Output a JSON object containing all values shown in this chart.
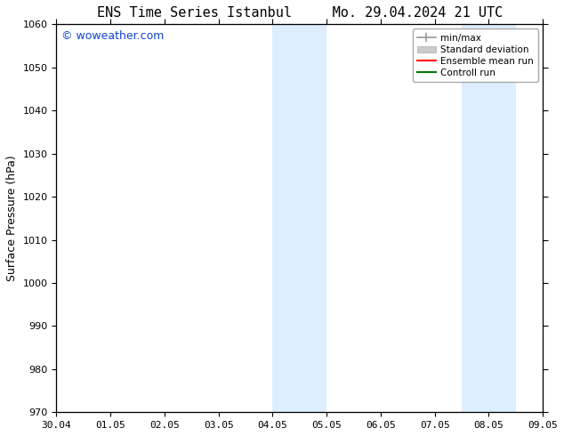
{
  "title_left": "ENS Time Series Istanbul",
  "title_right": "Mo. 29.04.2024 21 UTC",
  "ylabel": "Surface Pressure (hPa)",
  "ylim": [
    970,
    1060
  ],
  "yticks": [
    970,
    980,
    990,
    1000,
    1010,
    1020,
    1030,
    1040,
    1050,
    1060
  ],
  "xtick_labels": [
    "30.04",
    "01.05",
    "02.05",
    "03.05",
    "04.05",
    "05.05",
    "06.05",
    "07.05",
    "08.05",
    "09.05"
  ],
  "xtick_positions": [
    0,
    1,
    2,
    3,
    4,
    5,
    6,
    7,
    8,
    9
  ],
  "shade_regions": [
    {
      "xstart": 4.0,
      "xend": 4.5
    },
    {
      "xstart": 4.5,
      "xend": 5.0
    },
    {
      "xstart": 7.5,
      "xend": 8.0
    },
    {
      "xstart": 8.0,
      "xend": 8.5
    }
  ],
  "shade_color": "#ddeeff",
  "background_color": "#ffffff",
  "watermark": "© woweather.com",
  "watermark_color": "#1144cc",
  "watermark_fontsize": 9,
  "legend_entries": [
    {
      "label": "min/max",
      "color": "#999999",
      "style": "errbar"
    },
    {
      "label": "Standard deviation",
      "color": "#cccccc",
      "style": "patch"
    },
    {
      "label": "Ensemble mean run",
      "color": "#ff0000",
      "style": "line"
    },
    {
      "label": "Controll run",
      "color": "#007700",
      "style": "line"
    }
  ],
  "title_fontsize": 11,
  "tick_fontsize": 8,
  "ylabel_fontsize": 9,
  "legend_fontsize": 7.5
}
